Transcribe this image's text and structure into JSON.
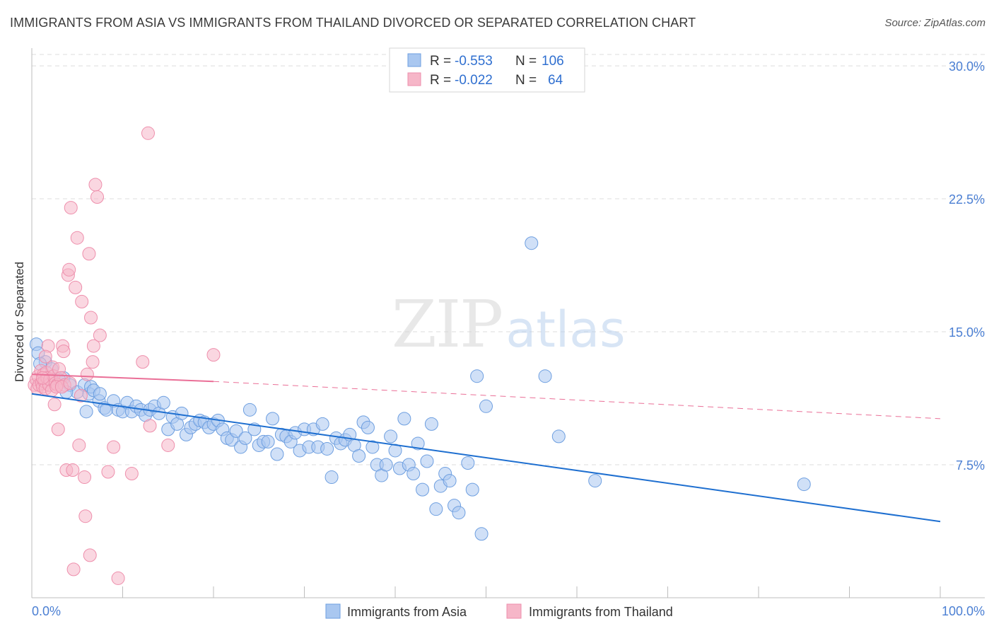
{
  "title": "IMMIGRANTS FROM ASIA VS IMMIGRANTS FROM THAILAND DIVORCED OR SEPARATED CORRELATION CHART",
  "source": "Source: ZipAtlas.com",
  "watermark": {
    "zip": "ZIP",
    "atlas": "atlas"
  },
  "colors": {
    "asia_fill": "#a9c7f0",
    "asia_stroke": "#6e9fe0",
    "asia_line": "#1e6fd0",
    "thailand_fill": "#f6b6c8",
    "thailand_stroke": "#ee8fac",
    "thailand_line": "#ea6f97",
    "tick_label": "#4b7fd3",
    "grid": "#dcdcdc"
  },
  "legend_box": {
    "rows": [
      {
        "r_label": "R =",
        "r_value": "-0.553",
        "n_label": "N =",
        "n_value": "106"
      },
      {
        "r_label": "R =",
        "r_value": "-0.022",
        "n_label": "N =",
        "n_value": "64"
      }
    ]
  },
  "chart_data": {
    "type": "scatter",
    "xlabel": "",
    "ylabel": "Divorced or Separated",
    "xlim": [
      0,
      100
    ],
    "ylim": [
      0,
      31
    ],
    "x_tick_labels": [
      "0.0%",
      "100.0%"
    ],
    "y_ticks": [
      7.5,
      15.0,
      22.5,
      30.0
    ],
    "y_tick_labels": [
      "7.5%",
      "15.0%",
      "22.5%",
      "30.0%"
    ],
    "grid": "horizontal dashed",
    "legend_position": "bottom",
    "series": [
      {
        "name": "Immigrants from Asia",
        "r": -0.553,
        "n": 106,
        "trend": {
          "x0": 0,
          "y0": 11.5,
          "x1": 100,
          "y1": 4.3
        },
        "points": [
          [
            0.5,
            14.3
          ],
          [
            0.7,
            13.8
          ],
          [
            1.5,
            13.3
          ],
          [
            2.2,
            12.9
          ],
          [
            3.5,
            12.4
          ],
          [
            4.2,
            12.0
          ],
          [
            5.0,
            11.6
          ],
          [
            5.8,
            12.0
          ],
          [
            6.3,
            11.5
          ],
          [
            6.5,
            11.9
          ],
          [
            6.8,
            11.7
          ],
          [
            7.4,
            11.1
          ],
          [
            7.5,
            11.5
          ],
          [
            8.0,
            10.7
          ],
          [
            8.2,
            10.6
          ],
          [
            9.0,
            11.1
          ],
          [
            9.5,
            10.6
          ],
          [
            10.0,
            10.5
          ],
          [
            10.5,
            11.0
          ],
          [
            11.0,
            10.5
          ],
          [
            11.5,
            10.8
          ],
          [
            12.0,
            10.6
          ],
          [
            12.5,
            10.3
          ],
          [
            13.0,
            10.6
          ],
          [
            13.5,
            10.8
          ],
          [
            14.0,
            10.4
          ],
          [
            14.5,
            11.0
          ],
          [
            15.0,
            9.5
          ],
          [
            15.5,
            10.2
          ],
          [
            16.0,
            9.8
          ],
          [
            16.5,
            10.4
          ],
          [
            17.0,
            9.2
          ],
          [
            17.5,
            9.6
          ],
          [
            18.0,
            9.8
          ],
          [
            18.5,
            10.0
          ],
          [
            19.0,
            9.9
          ],
          [
            19.5,
            9.6
          ],
          [
            20.0,
            9.8
          ],
          [
            20.5,
            10.0
          ],
          [
            21.0,
            9.5
          ],
          [
            21.5,
            9.0
          ],
          [
            22.0,
            8.9
          ],
          [
            22.5,
            9.4
          ],
          [
            23.0,
            8.5
          ],
          [
            23.5,
            9.0
          ],
          [
            24.0,
            10.6
          ],
          [
            24.5,
            9.5
          ],
          [
            25.0,
            8.6
          ],
          [
            25.5,
            8.8
          ],
          [
            26.0,
            8.8
          ],
          [
            26.5,
            10.1
          ],
          [
            27.0,
            8.1
          ],
          [
            27.5,
            9.2
          ],
          [
            28.0,
            9.1
          ],
          [
            28.5,
            8.8
          ],
          [
            29.0,
            9.3
          ],
          [
            29.5,
            8.3
          ],
          [
            30.0,
            9.5
          ],
          [
            30.5,
            8.5
          ],
          [
            31.0,
            9.5
          ],
          [
            31.5,
            8.5
          ],
          [
            32.0,
            9.8
          ],
          [
            32.5,
            8.4
          ],
          [
            33.0,
            6.8
          ],
          [
            33.5,
            9.0
          ],
          [
            34.0,
            8.7
          ],
          [
            34.5,
            8.9
          ],
          [
            35.0,
            9.2
          ],
          [
            35.5,
            8.6
          ],
          [
            36.0,
            8.0
          ],
          [
            36.5,
            9.9
          ],
          [
            37.0,
            9.6
          ],
          [
            37.5,
            8.5
          ],
          [
            38.0,
            7.5
          ],
          [
            38.5,
            6.9
          ],
          [
            39.0,
            7.5
          ],
          [
            39.5,
            9.1
          ],
          [
            40.0,
            8.3
          ],
          [
            40.5,
            7.3
          ],
          [
            41.0,
            10.1
          ],
          [
            41.5,
            7.5
          ],
          [
            42.0,
            7.0
          ],
          [
            42.5,
            8.7
          ],
          [
            43.0,
            6.1
          ],
          [
            43.5,
            7.7
          ],
          [
            44.0,
            9.8
          ],
          [
            44.5,
            5.0
          ],
          [
            45.0,
            6.3
          ],
          [
            45.5,
            7.0
          ],
          [
            46.0,
            6.6
          ],
          [
            46.5,
            5.2
          ],
          [
            47.0,
            4.8
          ],
          [
            48.0,
            7.6
          ],
          [
            48.5,
            6.1
          ],
          [
            49.0,
            12.5
          ],
          [
            49.5,
            3.6
          ],
          [
            50.0,
            10.8
          ],
          [
            55.0,
            20.0
          ],
          [
            56.5,
            12.5
          ],
          [
            58.0,
            9.1
          ],
          [
            62.0,
            6.6
          ],
          [
            85.0,
            6.4
          ],
          [
            0.9,
            13.2
          ],
          [
            3.8,
            11.6
          ],
          [
            6.0,
            10.5
          ],
          [
            3.0,
            12.3
          ]
        ]
      },
      {
        "name": "Immigrants from Thailand",
        "r": -0.022,
        "n": 64,
        "trend": {
          "x0": 0,
          "y0": 12.6,
          "x1": 20,
          "y1": 12.2,
          "dash_x1": 100,
          "dash_y1": 10.1
        },
        "points": [
          [
            0.3,
            12.0
          ],
          [
            0.5,
            12.3
          ],
          [
            0.6,
            11.8
          ],
          [
            0.7,
            12.5
          ],
          [
            0.8,
            12.0
          ],
          [
            1.0,
            12.8
          ],
          [
            1.1,
            12.1
          ],
          [
            1.2,
            11.9
          ],
          [
            1.3,
            12.6
          ],
          [
            1.4,
            12.2
          ],
          [
            1.5,
            11.8
          ],
          [
            1.6,
            12.7
          ],
          [
            1.7,
            12.4
          ],
          [
            1.8,
            14.2
          ],
          [
            1.9,
            12.0
          ],
          [
            2.0,
            12.3
          ],
          [
            2.2,
            11.7
          ],
          [
            2.3,
            13.0
          ],
          [
            2.4,
            12.5
          ],
          [
            2.5,
            10.9
          ],
          [
            2.6,
            12.1
          ],
          [
            2.8,
            12.0
          ],
          [
            2.9,
            9.5
          ],
          [
            3.0,
            12.9
          ],
          [
            3.2,
            12.4
          ],
          [
            3.4,
            14.2
          ],
          [
            3.5,
            13.9
          ],
          [
            3.6,
            12.0
          ],
          [
            3.8,
            7.2
          ],
          [
            4.0,
            18.2
          ],
          [
            4.1,
            18.5
          ],
          [
            4.3,
            22.0
          ],
          [
            4.5,
            7.2
          ],
          [
            4.6,
            1.6
          ],
          [
            4.8,
            17.5
          ],
          [
            5.0,
            20.3
          ],
          [
            5.2,
            8.6
          ],
          [
            5.5,
            16.7
          ],
          [
            5.8,
            6.8
          ],
          [
            5.9,
            4.6
          ],
          [
            6.1,
            12.6
          ],
          [
            6.3,
            19.4
          ],
          [
            6.4,
            2.4
          ],
          [
            6.5,
            15.8
          ],
          [
            6.7,
            13.3
          ],
          [
            6.8,
            14.2
          ],
          [
            7.0,
            23.3
          ],
          [
            7.2,
            22.6
          ],
          [
            7.5,
            14.8
          ],
          [
            8.4,
            7.1
          ],
          [
            9.0,
            8.5
          ],
          [
            9.5,
            1.1
          ],
          [
            11.0,
            7.0
          ],
          [
            12.2,
            13.3
          ],
          [
            12.8,
            26.2
          ],
          [
            13.0,
            9.7
          ],
          [
            15.0,
            8.6
          ],
          [
            20.0,
            13.7
          ],
          [
            1.2,
            12.4
          ],
          [
            1.5,
            13.6
          ],
          [
            2.7,
            11.9
          ],
          [
            3.3,
            11.9
          ],
          [
            4.2,
            12.1
          ],
          [
            5.4,
            11.4
          ]
        ]
      }
    ]
  },
  "bottom_legend": [
    {
      "label": "Immigrants from Asia"
    },
    {
      "label": "Immigrants from Thailand"
    }
  ]
}
